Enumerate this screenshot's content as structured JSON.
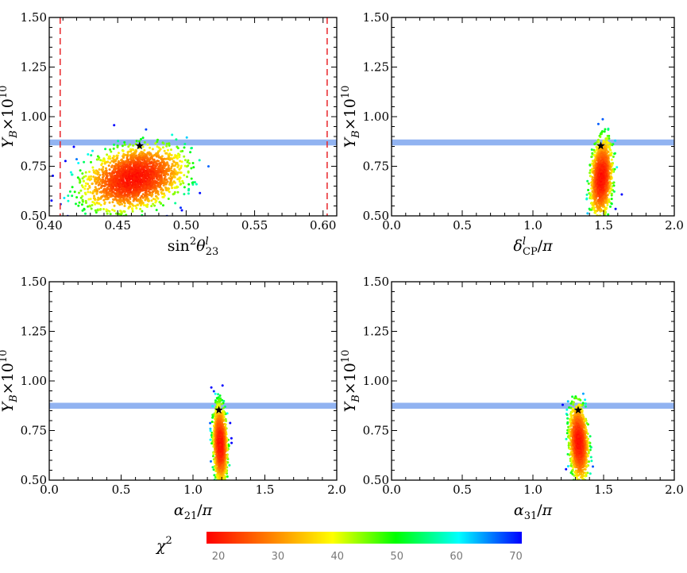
{
  "chart_data": [
    {
      "type": "scatter",
      "title": "",
      "xlabel": "sin²θ₂₃ˡ",
      "xlabel_parts": {
        "base": "sin",
        "sup": "2",
        "theta": "θ",
        "sub": "23",
        "supl": "l"
      },
      "ylabel": "Y_B×10¹⁰",
      "xlim": [
        0.4,
        0.61
      ],
      "ylim": [
        0.5,
        1.5
      ],
      "xticks": [
        0.4,
        0.45,
        0.5,
        0.55,
        0.6
      ],
      "xtick_labels": [
        "0.40",
        "0.45",
        "0.50",
        "0.55",
        "0.60"
      ],
      "yticks": [
        0.5,
        0.75,
        1.0,
        1.25,
        1.5
      ],
      "ytick_labels": [
        "0.50",
        "0.75",
        "1.00",
        "1.25",
        "1.50"
      ],
      "band": [
        0.855,
        0.885
      ],
      "vlines": [
        0.408,
        0.603
      ],
      "best_fit": {
        "x": 0.466,
        "y": 0.853
      },
      "cloud": {
        "cx": 0.462,
        "cy": 0.69,
        "sx": 0.016,
        "sy": 0.075,
        "tilt": 0.3
      },
      "points": 2200
    },
    {
      "type": "scatter",
      "title": "",
      "xlabel": "δ_CPˡ/π",
      "ylabel": "Y_B×10¹⁰",
      "xlim": [
        0.0,
        2.0
      ],
      "ylim": [
        0.5,
        1.5
      ],
      "xticks": [
        0.0,
        0.5,
        1.0,
        1.5,
        2.0
      ],
      "xtick_labels": [
        "0.0",
        "0.5",
        "1.0",
        "1.5",
        "2.0"
      ],
      "yticks": [
        0.5,
        0.75,
        1.0,
        1.25,
        1.5
      ],
      "ytick_labels": [
        "0.50",
        "0.75",
        "1.00",
        "1.25",
        "1.50"
      ],
      "band": [
        0.855,
        0.885
      ],
      "vlines": [],
      "best_fit": {
        "x": 1.48,
        "y": 0.853
      },
      "cloud": {
        "cx": 1.485,
        "cy": 0.69,
        "sx": 0.035,
        "sy": 0.09,
        "tilt": 0.2
      },
      "points": 1300
    },
    {
      "type": "scatter",
      "title": "",
      "xlabel": "α₂₁/π",
      "ylabel": "Y_B×10¹⁰",
      "xlim": [
        0.0,
        2.0
      ],
      "ylim": [
        0.5,
        1.5
      ],
      "xticks": [
        0.0,
        0.5,
        1.0,
        1.5,
        2.0
      ],
      "xtick_labels": [
        "0.0",
        "0.5",
        "1.0",
        "1.5",
        "2.0"
      ],
      "yticks": [
        0.5,
        0.75,
        1.0,
        1.25,
        1.5
      ],
      "ytick_labels": [
        "0.50",
        "0.75",
        "1.00",
        "1.25",
        "1.50"
      ],
      "band": [
        0.86,
        0.89
      ],
      "vlines": [],
      "best_fit": {
        "x": 1.18,
        "y": 0.853
      },
      "cloud": {
        "cx": 1.19,
        "cy": 0.68,
        "sx": 0.022,
        "sy": 0.09,
        "tilt": -0.15
      },
      "points": 1300
    },
    {
      "type": "scatter",
      "title": "",
      "xlabel": "α₃₁/π",
      "ylabel": "Y_B×10¹⁰",
      "xlim": [
        0.0,
        2.0
      ],
      "ylim": [
        0.5,
        1.5
      ],
      "xticks": [
        0.0,
        0.5,
        1.0,
        1.5,
        2.0
      ],
      "xtick_labels": [
        "0.0",
        "0.5",
        "1.0",
        "1.5",
        "2.0"
      ],
      "yticks": [
        0.5,
        0.75,
        1.0,
        1.25,
        1.5
      ],
      "ytick_labels": [
        "0.50",
        "0.75",
        "1.00",
        "1.25",
        "1.50"
      ],
      "band": [
        0.86,
        0.89
      ],
      "vlines": [],
      "best_fit": {
        "x": 1.32,
        "y": 0.853
      },
      "cloud": {
        "cx": 1.325,
        "cy": 0.69,
        "sx": 0.03,
        "sy": 0.09,
        "tilt": -0.2
      },
      "points": 1300
    }
  ],
  "colorbar": {
    "label": "χ²",
    "min": 18,
    "max": 71,
    "ticks": [
      20,
      30,
      40,
      50,
      60,
      70
    ],
    "tick_labels": [
      "20",
      "30",
      "40",
      "50",
      "60",
      "70"
    ],
    "stops": [
      "#ff0000",
      "#ff7f00",
      "#ffff00",
      "#00ff00",
      "#00ffff",
      "#0000ff"
    ]
  },
  "colors": {
    "band": "#7ea6ee",
    "vline": "#e8252a",
    "star": "#000000"
  }
}
